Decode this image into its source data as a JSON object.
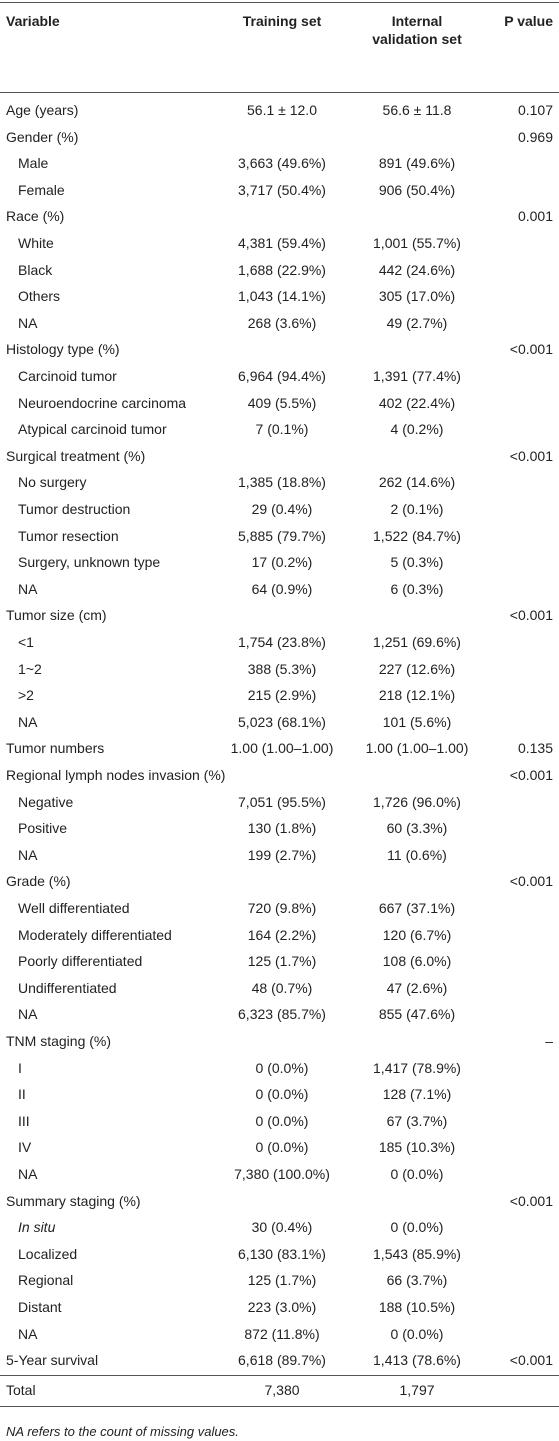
{
  "table": {
    "header": [
      "Variable",
      "Training set",
      "Internal validation set",
      "P value"
    ],
    "rows": [
      {
        "cells": [
          "Age (years)",
          "56.1 ± 12.0",
          "56.6 ± 11.8",
          "0.107"
        ]
      },
      {
        "cells": [
          "Gender (%)",
          null,
          null,
          "0.969"
        ]
      },
      {
        "cells": [
          "Male",
          "3,663 (49.6%)",
          "891 (49.6%)",
          null
        ],
        "indent": true
      },
      {
        "cells": [
          "Female",
          "3,717 (50.4%)",
          "906 (50.4%)",
          null
        ],
        "indent": true
      },
      {
        "cells": [
          "Race (%)",
          null,
          null,
          "0.001"
        ]
      },
      {
        "cells": [
          "White",
          "4,381 (59.4%)",
          "1,001 (55.7%)",
          null
        ],
        "indent": true
      },
      {
        "cells": [
          "Black",
          "1,688 (22.9%)",
          "442 (24.6%)",
          null
        ],
        "indent": true
      },
      {
        "cells": [
          "Others",
          "1,043 (14.1%)",
          "305 (17.0%)",
          null
        ],
        "indent": true
      },
      {
        "cells": [
          "NA",
          "268 (3.6%)",
          "49 (2.7%)",
          null
        ],
        "indent": true
      },
      {
        "cells": [
          "Histology type (%)",
          null,
          null,
          "<0.001"
        ]
      },
      {
        "cells": [
          "Carcinoid tumor",
          "6,964 (94.4%)",
          "1,391 (77.4%)",
          null
        ],
        "indent": true
      },
      {
        "cells": [
          "Neuroendocrine carcinoma",
          "409 (5.5%)",
          "402 (22.4%)",
          null
        ],
        "indent": true
      },
      {
        "cells": [
          "Atypical carcinoid tumor",
          "7 (0.1%)",
          "4 (0.2%)",
          null
        ],
        "indent": true
      },
      {
        "cells": [
          "Surgical treatment (%)",
          null,
          null,
          "<0.001"
        ]
      },
      {
        "cells": [
          "No surgery",
          "1,385 (18.8%)",
          "262 (14.6%)",
          null
        ],
        "indent": true
      },
      {
        "cells": [
          "Tumor destruction",
          "29 (0.4%)",
          "2 (0.1%)",
          null
        ],
        "indent": true
      },
      {
        "cells": [
          "Tumor resection",
          "5,885 (79.7%)",
          "1,522 (84.7%)",
          null
        ],
        "indent": true
      },
      {
        "cells": [
          "Surgery, unknown type",
          "17 (0.2%)",
          "5 (0.3%)",
          null
        ],
        "indent": true
      },
      {
        "cells": [
          "NA",
          "64 (0.9%)",
          "6 (0.3%)",
          null
        ],
        "indent": true
      },
      {
        "cells": [
          "Tumor size (cm)",
          null,
          null,
          "<0.001"
        ]
      },
      {
        "cells": [
          "<1",
          "1,754 (23.8%)",
          "1,251 (69.6%)",
          null
        ],
        "indent": true
      },
      {
        "cells": [
          "1~2",
          "388 (5.3%)",
          "227 (12.6%)",
          null
        ],
        "indent": true
      },
      {
        "cells": [
          ">2",
          "215 (2.9%)",
          "218 (12.1%)",
          null
        ],
        "indent": true
      },
      {
        "cells": [
          "NA",
          "5,023 (68.1%)",
          "101 (5.6%)",
          null
        ],
        "indent": true
      },
      {
        "cells": [
          "Tumor numbers",
          "1.00 (1.00–1.00)",
          "1.00 (1.00–1.00)",
          "0.135"
        ]
      },
      {
        "cells": [
          "Regional lymph nodes invasion (%)",
          null,
          null,
          "<0.001"
        ]
      },
      {
        "cells": [
          "Negative",
          "7,051 (95.5%)",
          "1,726 (96.0%)",
          null
        ],
        "indent": true
      },
      {
        "cells": [
          "Positive",
          "130 (1.8%)",
          "60 (3.3%)",
          null
        ],
        "indent": true
      },
      {
        "cells": [
          "NA",
          "199 (2.7%)",
          "11 (0.6%)",
          null
        ],
        "indent": true
      },
      {
        "cells": [
          "Grade (%)",
          null,
          null,
          "<0.001"
        ]
      },
      {
        "cells": [
          "Well differentiated",
          "720 (9.8%)",
          "667 (37.1%)",
          null
        ],
        "indent": true
      },
      {
        "cells": [
          "Moderately differentiated",
          "164 (2.2%)",
          "120 (6.7%)",
          null
        ],
        "indent": true
      },
      {
        "cells": [
          "Poorly differentiated",
          "125 (1.7%)",
          "108 (6.0%)",
          null
        ],
        "indent": true
      },
      {
        "cells": [
          "Undifferentiated",
          "48 (0.7%)",
          "47 (2.6%)",
          null
        ],
        "indent": true
      },
      {
        "cells": [
          "NA",
          "6,323 (85.7%)",
          "855 (47.6%)",
          null
        ],
        "indent": true
      },
      {
        "cells": [
          "TNM staging (%)",
          null,
          null,
          "–"
        ]
      },
      {
        "cells": [
          "I",
          "0 (0.0%)",
          "1,417 (78.9%)",
          null
        ],
        "indent": true
      },
      {
        "cells": [
          "II",
          "0 (0.0%)",
          "128 (7.1%)",
          null
        ],
        "indent": true
      },
      {
        "cells": [
          "III",
          "0 (0.0%)",
          "67 (3.7%)",
          null
        ],
        "indent": true
      },
      {
        "cells": [
          "IV",
          "0 (0.0%)",
          "185 (10.3%)",
          null
        ],
        "indent": true
      },
      {
        "cells": [
          "NA",
          "7,380 (100.0%)",
          "0 (0.0%)",
          null
        ],
        "indent": true
      },
      {
        "cells": [
          "Summary staging (%)",
          null,
          null,
          "<0.001"
        ]
      },
      {
        "cells": [
          "In situ",
          "30 (0.4%)",
          "0 (0.0%)",
          null
        ],
        "indent": true,
        "italic": true
      },
      {
        "cells": [
          "Localized",
          "6,130 (83.1%)",
          "1,543 (85.9%)",
          null
        ],
        "indent": true
      },
      {
        "cells": [
          "Regional",
          "125 (1.7%)",
          "66 (3.7%)",
          null
        ],
        "indent": true
      },
      {
        "cells": [
          "Distant",
          "223 (3.0%)",
          "188 (10.5%)",
          null
        ],
        "indent": true
      },
      {
        "cells": [
          "NA",
          "872 (11.8%)",
          "0 (0.0%)",
          null
        ],
        "indent": true
      },
      {
        "cells": [
          "5-Year survival",
          "6,618 (89.7%)",
          "1,413 (78.6%)",
          "<0.001"
        ]
      }
    ],
    "total": [
      "Total",
      "7,380",
      "1,797"
    ],
    "footnote": "NA refers to the count of missing values."
  }
}
